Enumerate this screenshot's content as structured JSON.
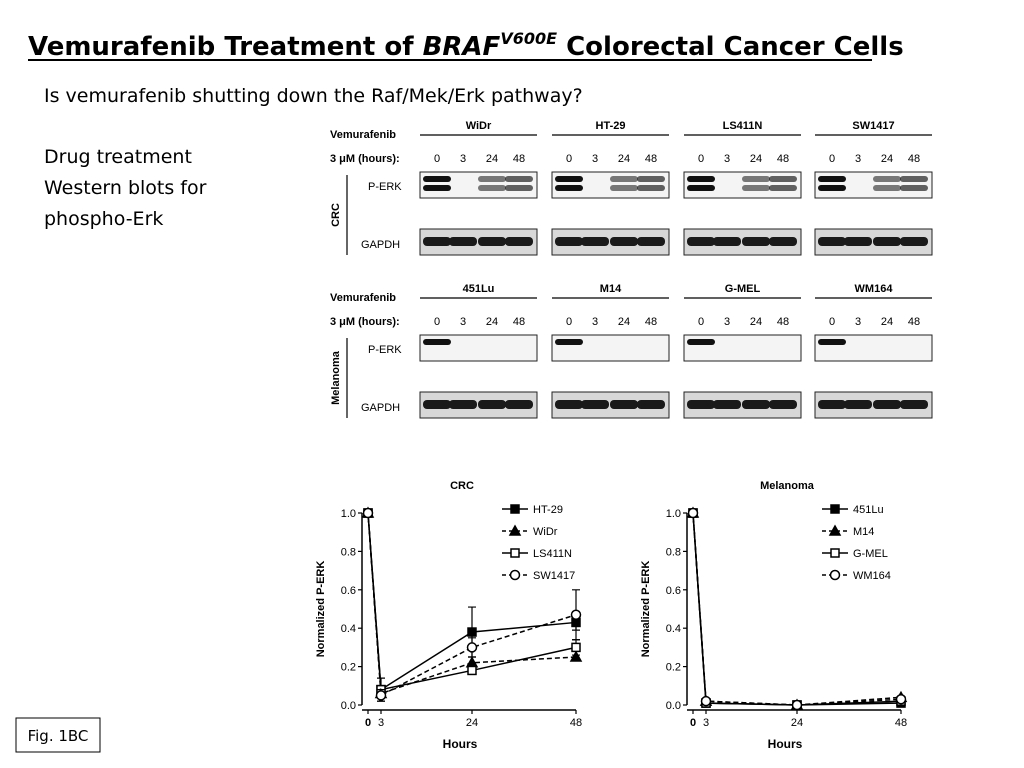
{
  "slide": {
    "title": [
      "Vemurafenib Treatment of ",
      "BRAF",
      "V600E",
      " Colorectal Cancer Cells"
    ],
    "question": "Is vemurafenib shutting down the Raf/Mek/Erk pathway?",
    "notes": [
      "Drug treatment",
      "Western blots for",
      "phospho-Erk"
    ],
    "figure_label": "Fig. 1BC"
  },
  "blots": {
    "drug_label": "Vemurafenib",
    "dose_label": "3 μM (hours):",
    "times": [
      "0",
      "3",
      "24",
      "48"
    ],
    "rows": [
      "P-ERK",
      "GAPDH"
    ],
    "groups": [
      {
        "name": "CRC",
        "cell_lines": [
          "WiDr",
          "HT-29",
          "LS411N",
          "SW1417"
        ]
      },
      {
        "name": "Melanoma",
        "cell_lines": [
          "451Lu",
          "M14",
          "G-MEL",
          "WM164"
        ]
      }
    ]
  },
  "chart_data": [
    {
      "type": "line",
      "title": "CRC",
      "x_label": "Hours",
      "y_label": "Normalized P-ERK",
      "x": [
        0,
        3,
        24,
        48
      ],
      "xlim": [
        0,
        48
      ],
      "xticks": [
        0,
        3,
        24,
        48
      ],
      "ylim": [
        0,
        1
      ],
      "yticks": [
        {
          "value": 0,
          "label": "0.0"
        },
        0.2,
        0.4,
        0.6,
        0.8,
        {
          "value": 1,
          "label": "1.0"
        }
      ],
      "legend": "upper right",
      "series": [
        {
          "name": "HT-29",
          "color": "#000000",
          "style": "solid",
          "marker": "square",
          "values": [
            1.0,
            0.08,
            0.38,
            0.43
          ],
          "errors": [
            0,
            0.06,
            0.13,
            0.04
          ]
        },
        {
          "name": "WiDr",
          "color": "#000000",
          "style": "dashed",
          "marker": "triangle",
          "values": [
            1.0,
            0.06,
            0.22,
            0.25
          ]
        },
        {
          "name": "LS411N",
          "color": "#000000",
          "style": "solid",
          "marker": "open-square",
          "values": [
            1.0,
            0.08,
            0.18,
            0.3
          ],
          "errors": [
            0,
            0.02,
            0.02,
            0.04
          ]
        },
        {
          "name": "SW1417",
          "color": "#000000",
          "style": "dashed",
          "marker": "open-circle",
          "values": [
            1.0,
            0.05,
            0.3,
            0.47
          ],
          "errors": [
            0,
            0.03,
            0.05,
            0.13
          ]
        }
      ]
    },
    {
      "type": "line",
      "title": "Melanoma",
      "x_label": "Hours",
      "y_label": "Normalized P-ERK",
      "x": [
        0,
        3,
        24,
        48
      ],
      "xlim": [
        0,
        48
      ],
      "xticks": [
        0,
        3,
        24,
        48
      ],
      "ylim": [
        0,
        1
      ],
      "yticks": [
        {
          "value": 0,
          "label": "0.0"
        },
        0.2,
        0.4,
        0.6,
        0.8,
        {
          "value": 1,
          "label": "1.0"
        }
      ],
      "legend": "upper right",
      "series": [
        {
          "name": "451Lu",
          "color": "#000000",
          "style": "solid",
          "marker": "square",
          "values": [
            1.0,
            0.01,
            0.0,
            0.01
          ]
        },
        {
          "name": "M14",
          "color": "#000000",
          "style": "dashed",
          "marker": "triangle",
          "values": [
            1.0,
            0.02,
            0.0,
            0.04
          ]
        },
        {
          "name": "G-MEL",
          "color": "#000000",
          "style": "solid",
          "marker": "open-square",
          "values": [
            1.0,
            0.01,
            0.0,
            0.02
          ]
        },
        {
          "name": "WM164",
          "color": "#000000",
          "style": "dashed",
          "marker": "open-circle",
          "values": [
            1.0,
            0.02,
            0.0,
            0.03
          ]
        }
      ]
    }
  ]
}
